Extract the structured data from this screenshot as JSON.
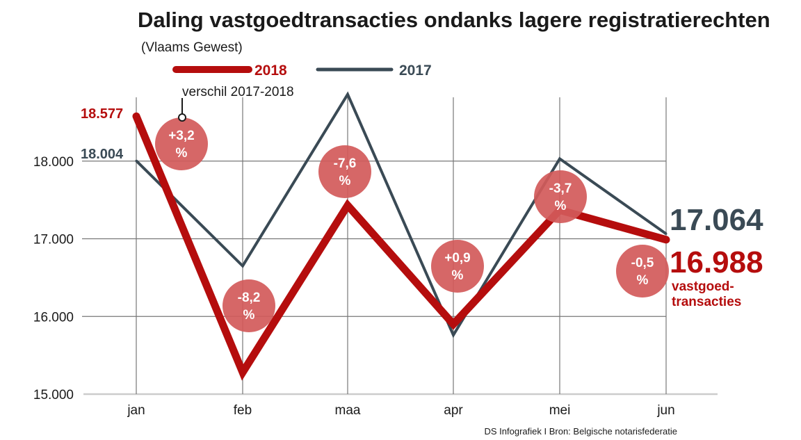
{
  "colors": {
    "series_2018": "#b50d0d",
    "series_2017": "#3a4a55",
    "bubble": "#d35a5a",
    "grid": "#777777"
  },
  "annotation": {
    "difference_label": "verschil 2017-2018"
  },
  "end_labels": {
    "value_2017": "17.064",
    "value_2018": "16.988",
    "unit_line1": "vastgoed-",
    "unit_line2": "transacties"
  },
  "start_labels": {
    "value_2018": "18.577",
    "value_2017": "18.004"
  },
  "source": "DS Infografiek I Bron: Belgische notarisfederatie",
  "chart_data": {
    "type": "line",
    "title": "Daling vastgoedtransacties ondanks lagere registratierechten",
    "subtitle": "(Vlaams Gewest)",
    "categories": [
      "jan",
      "feb",
      "maa",
      "apr",
      "mei",
      "jun"
    ],
    "series": [
      {
        "name": "2018",
        "values": [
          18577,
          15280,
          17430,
          15900,
          17370,
          16988
        ]
      },
      {
        "name": "2017",
        "values": [
          18004,
          16650,
          18860,
          15760,
          18030,
          17064
        ]
      }
    ],
    "differences": [
      {
        "line1": "+3,2",
        "line2": "%"
      },
      {
        "line1": "-8,2",
        "line2": "%"
      },
      {
        "line1": "-7,6",
        "line2": "%"
      },
      {
        "line1": "+0,9",
        "line2": "%"
      },
      {
        "line1": "-3,7",
        "line2": "%"
      },
      {
        "line1": "-0,5",
        "line2": "%"
      }
    ],
    "y_ticks": [
      {
        "value": 18000,
        "label": "18.000"
      },
      {
        "value": 17000,
        "label": "17.000"
      },
      {
        "value": 16000,
        "label": "16.000"
      },
      {
        "value": 15000,
        "label": "15.000"
      }
    ],
    "ylim": [
      15000,
      19000
    ],
    "grid": true,
    "legend_position": "top"
  }
}
